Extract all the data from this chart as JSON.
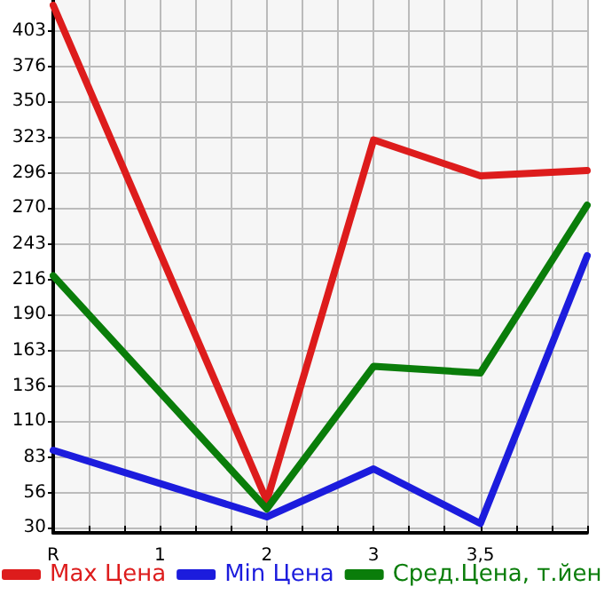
{
  "chart_data": {
    "type": "line",
    "categories": [
      "R",
      "1",
      "2",
      "3",
      "3,5",
      null
    ],
    "series": [
      {
        "name": "Max Цена",
        "color": "#dd1c1c",
        "values": [
          422,
          null,
          50,
          321,
          294,
          298
        ]
      },
      {
        "name": "Min Цена",
        "color": "#1c1cdd",
        "values": [
          88,
          null,
          38,
          74,
          33,
          234
        ]
      },
      {
        "name": "Сред.Цена, т.йен",
        "color": "#0a7d0a",
        "values": [
          219,
          null,
          44,
          151,
          146,
          272
        ]
      }
    ],
    "ylim": [
      26,
      426
    ],
    "yticks": [
      30,
      56,
      83,
      110,
      136,
      163,
      190,
      216,
      243,
      270,
      296,
      323,
      350,
      376,
      403
    ],
    "grid": true,
    "legend": "bottom",
    "marker": "none",
    "line_style": "solid"
  }
}
